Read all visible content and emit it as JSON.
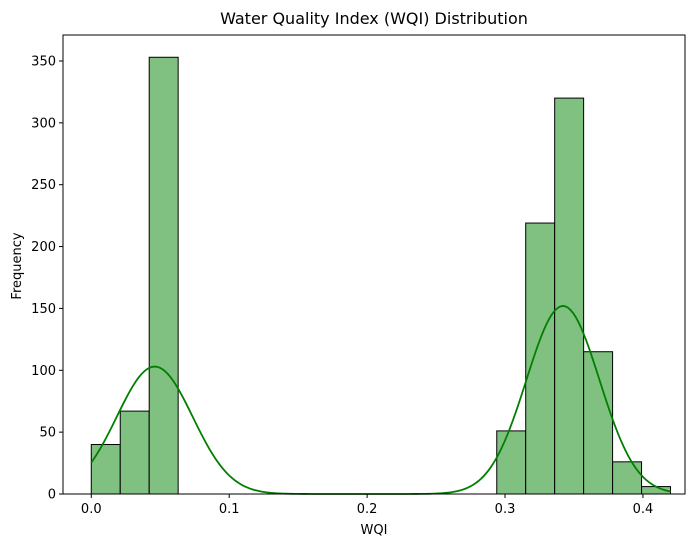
{
  "chart_data": {
    "type": "bar",
    "title": "Water Quality Index (WQI) Distribution",
    "xlabel": "WQI",
    "ylabel": "Frequency",
    "xlim": [
      -0.0205,
      0.4305
    ],
    "ylim": [
      0,
      371
    ],
    "x_ticks": [
      0.0,
      0.1,
      0.2,
      0.3,
      0.4
    ],
    "x_tick_labels": [
      "0.0",
      "0.1",
      "0.2",
      "0.3",
      "0.4"
    ],
    "y_ticks": [
      0,
      50,
      100,
      150,
      200,
      250,
      300,
      350
    ],
    "y_tick_labels": [
      "0",
      "50",
      "100",
      "150",
      "200",
      "250",
      "300",
      "350"
    ],
    "grid": false,
    "bins": [
      {
        "x0": 0.0,
        "x1": 0.021,
        "count": 40
      },
      {
        "x0": 0.021,
        "x1": 0.042,
        "count": 67
      },
      {
        "x0": 0.042,
        "x1": 0.063,
        "count": 353
      },
      {
        "x0": 0.063,
        "x1": 0.084,
        "count": 0
      },
      {
        "x0": 0.084,
        "x1": 0.105,
        "count": 0
      },
      {
        "x0": 0.105,
        "x1": 0.126,
        "count": 0
      },
      {
        "x0": 0.126,
        "x1": 0.147,
        "count": 0
      },
      {
        "x0": 0.147,
        "x1": 0.168,
        "count": 0
      },
      {
        "x0": 0.168,
        "x1": 0.189,
        "count": 0
      },
      {
        "x0": 0.189,
        "x1": 0.21,
        "count": 0
      },
      {
        "x0": 0.21,
        "x1": 0.231,
        "count": 0
      },
      {
        "x0": 0.231,
        "x1": 0.252,
        "count": 0
      },
      {
        "x0": 0.252,
        "x1": 0.273,
        "count": 0
      },
      {
        "x0": 0.273,
        "x1": 0.294,
        "count": 0
      },
      {
        "x0": 0.294,
        "x1": 0.315,
        "count": 51
      },
      {
        "x0": 0.315,
        "x1": 0.336,
        "count": 219
      },
      {
        "x0": 0.336,
        "x1": 0.357,
        "count": 320
      },
      {
        "x0": 0.357,
        "x1": 0.378,
        "count": 115
      },
      {
        "x0": 0.378,
        "x1": 0.399,
        "count": 26
      },
      {
        "x0": 0.399,
        "x1": 0.42,
        "count": 6
      }
    ],
    "kde": {
      "components": [
        {
          "mean": 0.046,
          "sd": 0.0275,
          "peak": 103
        },
        {
          "mean": 0.342,
          "sd": 0.0265,
          "peak": 152
        }
      ],
      "x_range": [
        0.0,
        0.42
      ]
    },
    "colors": {
      "bar_fill": "#80c080",
      "bar_edge": "#000000",
      "kde_line": "#008000",
      "axes": "#000000"
    }
  }
}
